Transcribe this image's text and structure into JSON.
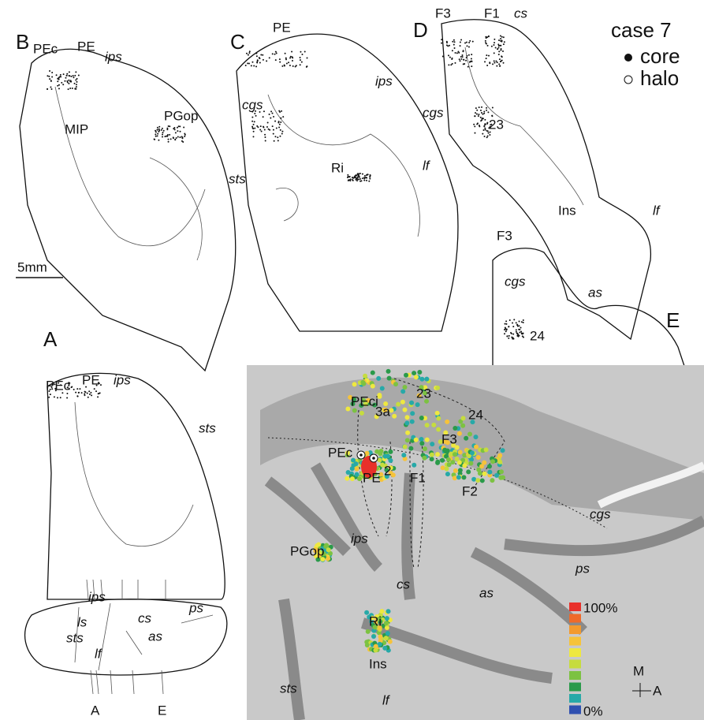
{
  "legend": {
    "title": "case 7",
    "items": [
      "core",
      "halo"
    ]
  },
  "scale_bar": "5mm",
  "panels": [
    {
      "label": "B",
      "annotations": [
        "PEc",
        "PE",
        "ips",
        "MIP",
        "PGop",
        "sts"
      ]
    },
    {
      "label": "C",
      "annotations": [
        "PE",
        "cgs",
        "ips",
        "Ri"
      ]
    },
    {
      "label": "D",
      "annotations": [
        "F3",
        "F1",
        "cs",
        "cgs",
        "23",
        "lf",
        "Ins",
        "lf"
      ]
    },
    {
      "label": "E",
      "annotations": [
        "F3",
        "cgs",
        "as",
        "24"
      ]
    },
    {
      "label": "A",
      "annotations": [
        "PEc",
        "PE",
        "ips",
        "sts"
      ]
    }
  ],
  "brain_outline": {
    "sulci": [
      "ls",
      "ips",
      "sts",
      "cs",
      "lf",
      "as",
      "ps"
    ],
    "section_marks": [
      "A",
      "E"
    ]
  },
  "flatmap": {
    "labels": [
      "PEci",
      "23",
      "3a",
      "24",
      "F3",
      "PEc",
      "2",
      "PE",
      "F1",
      "F2",
      "cgs",
      "ips",
      "cs",
      "as",
      "ps",
      "PGop",
      "Ri",
      "Ins",
      "sts",
      "lf"
    ],
    "colorbar": {
      "max": "100%",
      "min": "0%",
      "colors": [
        "#e8302a",
        "#ef6a2a",
        "#f39a2e",
        "#f6c33a",
        "#eee840",
        "#c6dc3e",
        "#7cc242",
        "#2a9a4a",
        "#27a9a8",
        "#3050b0"
      ]
    },
    "orientation": {
      "medial": "M",
      "anterior": "A"
    }
  }
}
